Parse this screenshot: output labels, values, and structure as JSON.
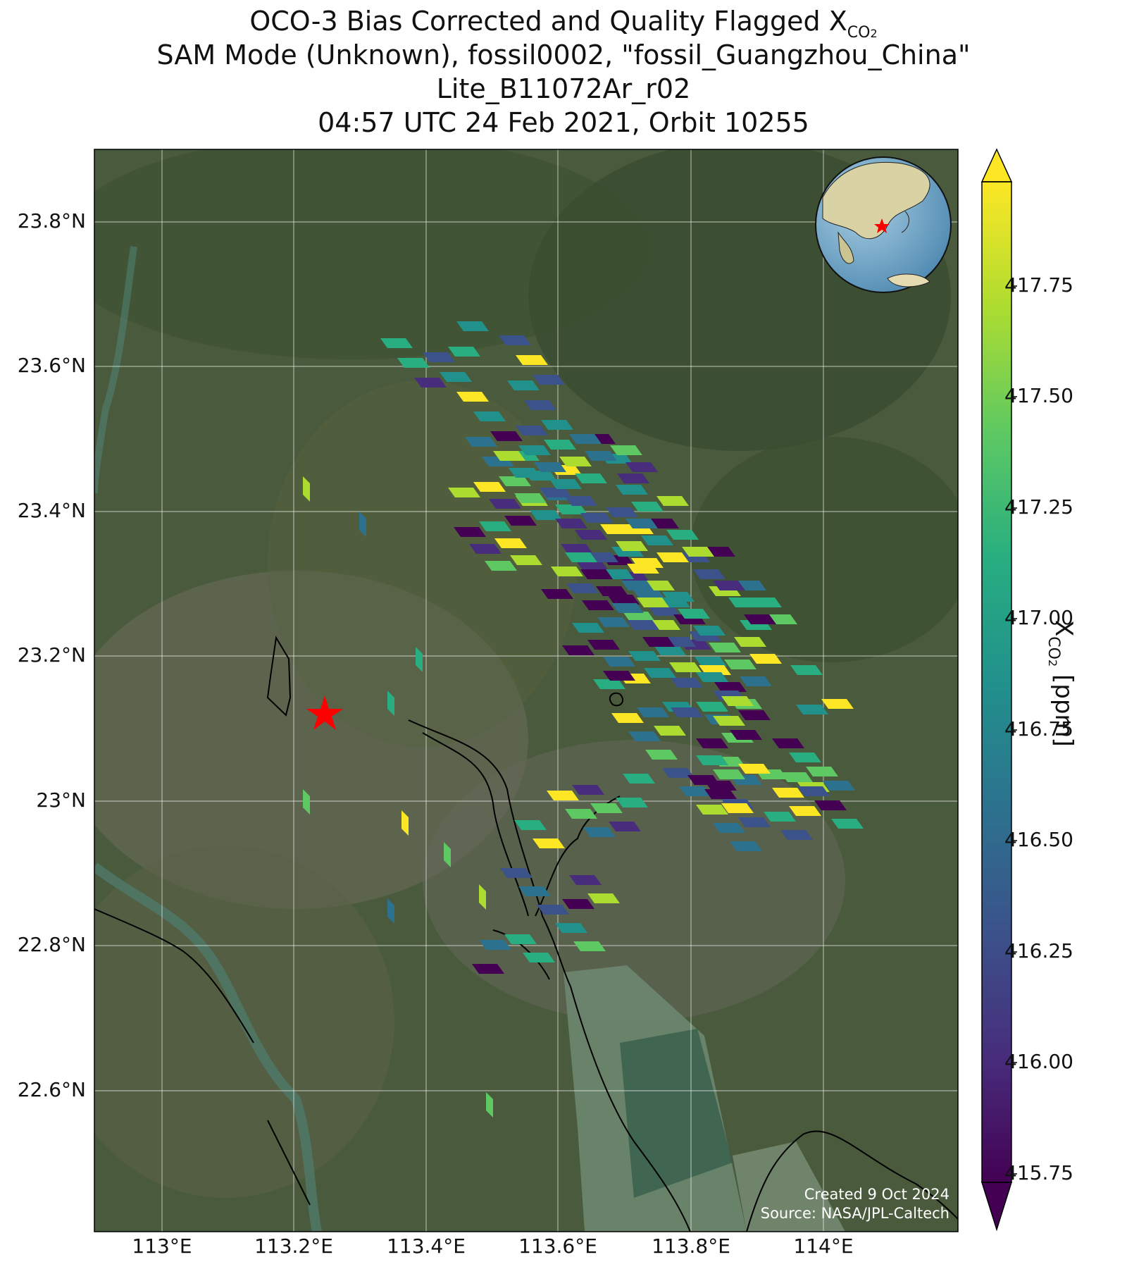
{
  "title": {
    "line1_main": "OCO-3 Bias Corrected and Quality Flagged X",
    "line1_sub": "CO",
    "line1_sub2": "2",
    "line2": "SAM Mode (Unknown), fossil0002, \"fossil_Guangzhou_China\"",
    "line3": "Lite_B11072Ar_r02",
    "line4": "04:57 UTC 24 Feb 2021, Orbit 10255"
  },
  "map": {
    "lon_range": [
      112.9,
      114.18
    ],
    "lat_range": [
      22.42,
      23.9
    ],
    "lon_ticks": [
      "113°E",
      "113.2°E",
      "113.4°E",
      "113.6°E",
      "113.8°E",
      "114°E"
    ],
    "lat_ticks": [
      "23.8°N",
      "23.6°N",
      "23.4°N",
      "23.2°N",
      "23°N",
      "22.8°N",
      "22.6°N"
    ],
    "target_marker": {
      "lon": 113.24,
      "lat": 23.12,
      "color": "#ff0000"
    },
    "inset_globe_icon": "globe-asia-icon",
    "credit_line1": "Created 9 Oct 2024",
    "credit_line2": "Source: NASA/JPL-Caltech"
  },
  "colorbar": {
    "label_main": "X",
    "label_sub": "CO",
    "label_sub2": "2",
    "label_unit": " [ppm]",
    "min": 415.65,
    "max": 417.95,
    "ticks": [
      "417.75",
      "417.50",
      "417.25",
      "417.00",
      "416.75",
      "416.50",
      "416.25",
      "416.00",
      "415.75"
    ],
    "colormap": "viridis"
  }
}
